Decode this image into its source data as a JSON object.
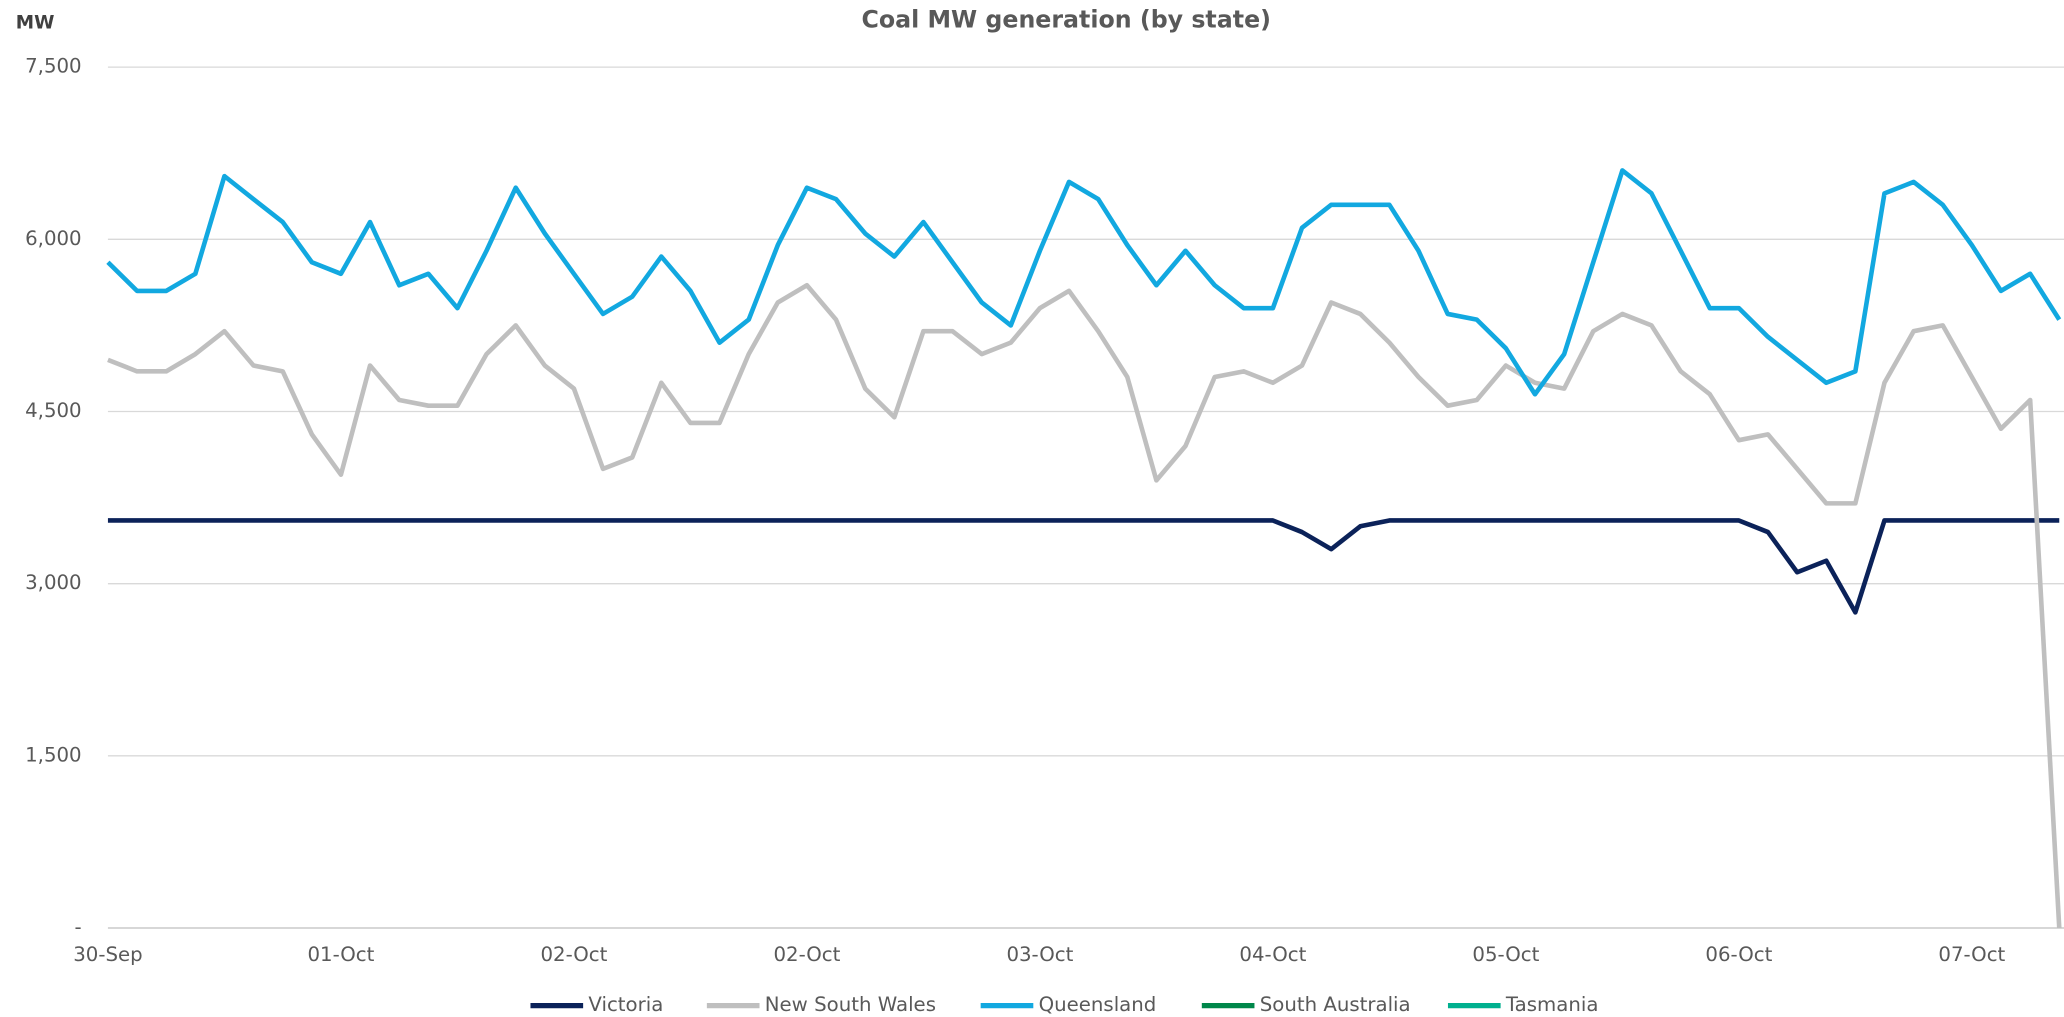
{
  "chart_data": {
    "type": "line",
    "title": "Coal MW generation (by state)",
    "y_label": "MW",
    "categories": [
      "30-Sep",
      null,
      null,
      null,
      null,
      null,
      null,
      null,
      "01-Oct",
      null,
      null,
      null,
      null,
      null,
      null,
      null,
      "02-Oct",
      null,
      null,
      null,
      null,
      null,
      null,
      null,
      "02-Oct",
      null,
      null,
      null,
      null,
      null,
      null,
      null,
      "03-Oct",
      null,
      null,
      null,
      null,
      null,
      null,
      null,
      "04-Oct",
      null,
      null,
      null,
      null,
      null,
      null,
      null,
      "05-Oct",
      null,
      null,
      null,
      null,
      null,
      null,
      null,
      "06-Oct",
      null,
      null,
      null,
      null,
      null,
      null,
      null,
      "07-Oct",
      null,
      null,
      null
    ],
    "ylim": [
      0,
      7500
    ],
    "yticks": [
      {
        "value": 0,
        "label": "-"
      },
      {
        "value": 1500,
        "label": "1,500"
      },
      {
        "value": 3000,
        "label": "3,000"
      },
      {
        "value": 4500,
        "label": "4,500"
      },
      {
        "value": 6000,
        "label": "6,000"
      },
      {
        "value": 7500,
        "label": "7,500"
      }
    ],
    "grid": true,
    "legend": "bottom",
    "series": [
      {
        "name": "Victoria",
        "color": "#0b2259",
        "values": [
          3550,
          3550,
          3550,
          3550,
          3550,
          3550,
          3550,
          3550,
          3550,
          3550,
          3550,
          3550,
          3550,
          3550,
          3550,
          3550,
          3550,
          3550,
          3550,
          3550,
          3550,
          3550,
          3550,
          3550,
          3550,
          3550,
          3550,
          3550,
          3550,
          3550,
          3550,
          3550,
          3550,
          3550,
          3550,
          3550,
          3550,
          3550,
          3550,
          3550,
          3550,
          3450,
          3300,
          3500,
          3550,
          3550,
          3550,
          3550,
          3550,
          3550,
          3550,
          3550,
          3550,
          3550,
          3550,
          3550,
          3550,
          3450,
          3100,
          3200,
          2750,
          3550,
          3550,
          3550,
          3550,
          3550,
          3550,
          3550
        ]
      },
      {
        "name": "New South Wales",
        "color": "#bfbfbf",
        "values": [
          4950,
          4850,
          4850,
          5000,
          5200,
          4900,
          4850,
          4300,
          3950,
          4900,
          4600,
          4550,
          4550,
          5000,
          5250,
          4900,
          4700,
          4000,
          4100,
          4750,
          4400,
          4400,
          5000,
          5450,
          5600,
          5300,
          4700,
          4450,
          5200,
          5200,
          5000,
          5100,
          5400,
          5550,
          5200,
          4800,
          3900,
          4200,
          4800,
          4850,
          4750,
          4900,
          5450,
          5350,
          5100,
          4800,
          4550,
          4600,
          4900,
          4750,
          4700,
          5200,
          5350,
          5250,
          4850,
          4650,
          4250,
          4300,
          4000,
          3700,
          3700,
          4750,
          5200,
          5250,
          4800,
          4350,
          4600,
          0
        ]
      },
      {
        "name": "Queensland",
        "color": "#12a8e0",
        "values": [
          5800,
          5550,
          5550,
          5700,
          6550,
          6350,
          6150,
          5800,
          5700,
          6150,
          5600,
          5700,
          5400,
          5900,
          6450,
          6050,
          5700,
          5350,
          5500,
          5850,
          5550,
          5100,
          5300,
          5950,
          6450,
          6350,
          6050,
          5850,
          6150,
          5800,
          5450,
          5250,
          5900,
          6500,
          6350,
          5950,
          5600,
          5900,
          5600,
          5400,
          5400,
          6100,
          6300,
          6300,
          6300,
          5900,
          5350,
          5300,
          5050,
          4650,
          5000,
          5800,
          6600,
          6400,
          5900,
          5400,
          5400,
          5150,
          4950,
          4750,
          4850,
          6400,
          6500,
          6300,
          5950,
          5550,
          5700,
          5300
        ]
      },
      {
        "name": "South Australia",
        "color": "#00874a",
        "values": [
          null,
          null,
          null,
          null,
          null,
          null,
          null,
          null,
          null,
          null,
          null,
          null,
          null,
          null,
          null,
          null,
          null,
          null,
          null,
          null,
          null,
          null,
          null,
          null,
          null,
          null,
          null,
          null,
          null,
          null,
          null,
          null,
          null,
          null,
          null,
          null,
          null,
          null,
          null,
          null,
          null,
          null,
          null,
          null,
          null,
          null,
          null,
          null,
          null,
          null,
          null,
          null,
          null,
          null,
          null,
          null,
          null,
          null,
          null,
          null,
          null,
          null,
          null,
          null,
          null,
          null,
          null,
          null
        ]
      },
      {
        "name": "Tasmania",
        "color": "#00b08f",
        "values": [
          null,
          null,
          null,
          null,
          null,
          null,
          null,
          null,
          null,
          null,
          null,
          null,
          null,
          null,
          null,
          null,
          null,
          null,
          null,
          null,
          null,
          null,
          null,
          null,
          null,
          null,
          null,
          null,
          null,
          null,
          null,
          null,
          null,
          null,
          null,
          null,
          null,
          null,
          null,
          null,
          null,
          null,
          null,
          null,
          null,
          null,
          null,
          null,
          null,
          null,
          null,
          null,
          null,
          null,
          null,
          null,
          null,
          null,
          null,
          null,
          null,
          null,
          null,
          null,
          null,
          null,
          null,
          null
        ]
      }
    ]
  }
}
